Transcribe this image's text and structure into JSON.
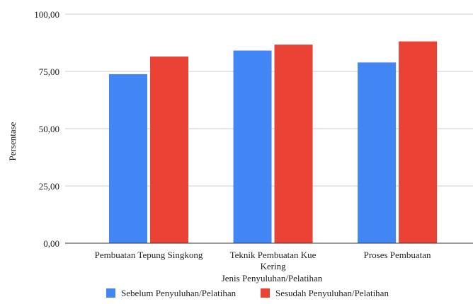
{
  "chart_data": {
    "type": "bar",
    "title": "",
    "xlabel": "Jenis Penyuluhan/Pelatihan",
    "ylabel": "Persentase",
    "categories": [
      [
        "Pembuatan Tepung Singkong"
      ],
      [
        "Teknik Pembuatan Kue",
        "Kering"
      ],
      [
        "Proses Pembuatan"
      ]
    ],
    "series": [
      {
        "name": "Sebelum Penyuluhan/Pelatihan",
        "color": "#4285F4",
        "values": [
          73.8,
          84.1,
          78.9
        ]
      },
      {
        "name": "Sesudah Penyuluhan/Pelatihan",
        "color": "#EA4335",
        "values": [
          81.5,
          86.7,
          88.1
        ]
      }
    ],
    "ylim": [
      0,
      100
    ],
    "yticks": [
      "0,00",
      "25,00",
      "50,00",
      "75,00",
      "100,00"
    ],
    "grid": true,
    "legend_position": "bottom"
  }
}
